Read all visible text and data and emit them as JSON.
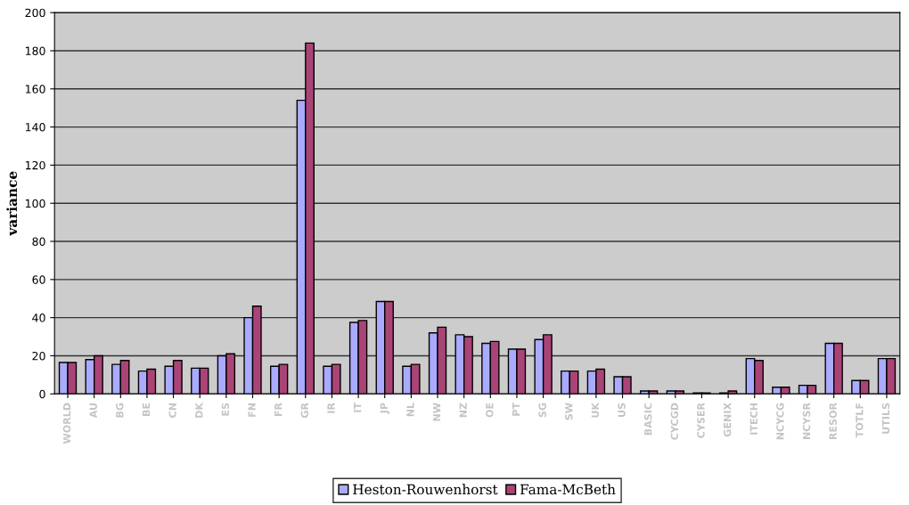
{
  "chart_data": {
    "type": "bar",
    "ylabel": "variance",
    "categories": [
      "WORLD",
      "AU",
      "BG",
      "BE",
      "CN",
      "DK",
      "ES",
      "FN",
      "FR",
      "GR",
      "IR",
      "IT",
      "JP",
      "NL",
      "NW",
      "NZ",
      "OE",
      "PT",
      "SG",
      "SW",
      "UK",
      "US",
      "BASIC",
      "CYCGD",
      "CYSER",
      "GENIX",
      "ITECH",
      "NCYCG",
      "NCYSR",
      "RESOR",
      "TOTLF",
      "UTILS"
    ],
    "series": [
      {
        "name": "Heston-Rouwenhorst",
        "color": "#aaaaff",
        "values": [
          16.5,
          18,
          15.5,
          12,
          14.5,
          13.5,
          20,
          40,
          14.5,
          154,
          14.5,
          37.5,
          48.5,
          14.5,
          32,
          31,
          26.5,
          23.5,
          28.5,
          12,
          12,
          9,
          1.5,
          1.5,
          0.5,
          0.5,
          18.5,
          3.5,
          4.5,
          26.5,
          7,
          18.5
        ]
      },
      {
        "name": "Fama-McBeth",
        "color": "#aa4477",
        "values": [
          16.5,
          20,
          17.5,
          13,
          17.5,
          13.5,
          21,
          46,
          15.5,
          184,
          15.5,
          38.5,
          48.5,
          15.5,
          35,
          30,
          27.5,
          23.5,
          31,
          12,
          13,
          9,
          1.5,
          1.5,
          0.5,
          1.5,
          17.5,
          3.5,
          4.5,
          26.5,
          7,
          18.5
        ]
      }
    ],
    "ylim": [
      0,
      200
    ],
    "yticks": [
      0,
      20,
      40,
      60,
      80,
      100,
      120,
      140,
      160,
      180,
      200
    ],
    "grid": "y",
    "legend": "bottom"
  }
}
